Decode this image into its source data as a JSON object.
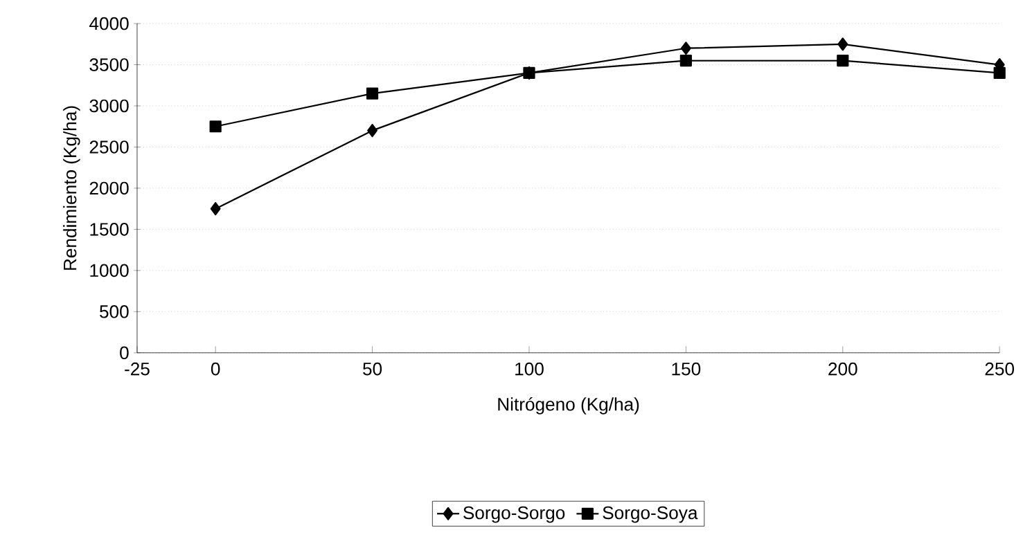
{
  "chart_data": {
    "type": "line",
    "xlabel": "Nitrógeno (Kg/ha)",
    "ylabel": "Rendimiento (Kg/ha)",
    "x": [
      0,
      50,
      100,
      150,
      200,
      250
    ],
    "series": [
      {
        "name": "Sorgo-Sorgo",
        "color": "#000000",
        "marker": "diamond",
        "values": [
          1750,
          2700,
          3400,
          3700,
          3750,
          3500
        ]
      },
      {
        "name": "Sorgo-Soya",
        "color": "#000000",
        "marker": "square",
        "values": [
          2750,
          3150,
          3400,
          3550,
          3550,
          3400
        ]
      }
    ],
    "xlim": [
      -25,
      250
    ],
    "xticks": [
      -25,
      0,
      50,
      100,
      150,
      200,
      250
    ],
    "ylim": [
      0,
      4000
    ],
    "yticks": [
      0,
      500,
      1000,
      1500,
      2000,
      2500,
      3000,
      3500,
      4000
    ],
    "grid": "y",
    "legend": "bottom",
    "line_style": "solid"
  }
}
